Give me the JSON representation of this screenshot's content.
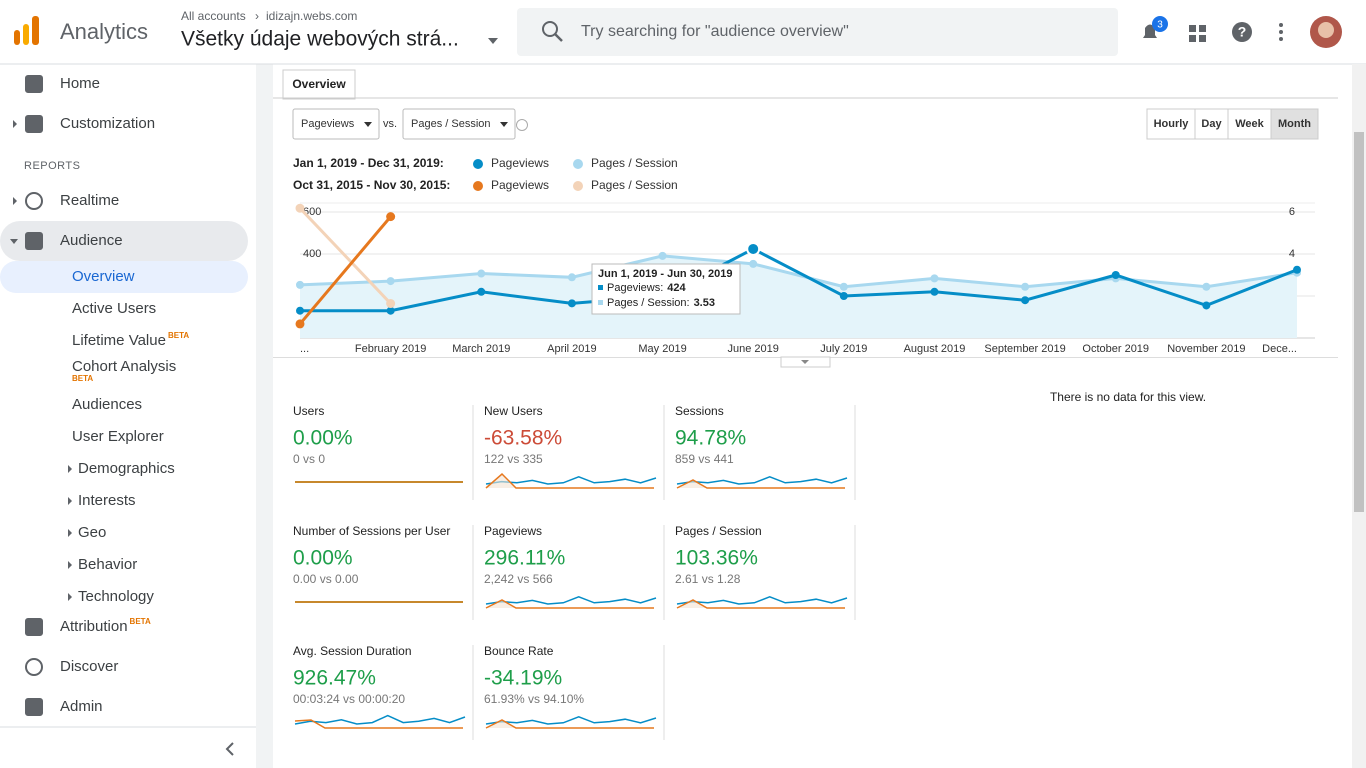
{
  "header": {
    "product": "Analytics",
    "breadcrumb": "All accounts",
    "breadcrumb_site": "idizajn.webs.com",
    "property": "Všetky údaje webových strá...",
    "search_placeholder": "Try searching for \"audience overview\"",
    "notifications": 3
  },
  "sidebar": {
    "section": "REPORTS",
    "items": [
      {
        "label": "Home"
      },
      {
        "label": "Customization"
      },
      {
        "label": "Realtime"
      },
      {
        "label": "Audience"
      },
      {
        "label": "Overview"
      },
      {
        "label": "Active Users"
      },
      {
        "label": "Lifetime Value",
        "badge": "BETA"
      },
      {
        "label": "Cohort Analysis",
        "badge": "BETA"
      },
      {
        "label": "Audiences"
      },
      {
        "label": "User Explorer"
      },
      {
        "label": "Demographics"
      },
      {
        "label": "Interests"
      },
      {
        "label": "Geo"
      },
      {
        "label": "Behavior"
      },
      {
        "label": "Technology"
      },
      {
        "label": "Attribution",
        "badge": "BETA"
      },
      {
        "label": "Discover"
      },
      {
        "label": "Admin"
      }
    ]
  },
  "toolbar": {
    "tab": "Overview",
    "metric1": "Pageviews",
    "vs": "vs.",
    "metric2": "Pages / Session",
    "buttons": [
      "Hourly",
      "Day",
      "Week",
      "Month"
    ]
  },
  "chart": {
    "type": "line",
    "ranges": [
      "Jan 1, 2019 - Dec 31, 2019:",
      "Oct 31, 2015 - Nov 30, 2015:"
    ],
    "categories": [
      "...",
      "February 2019",
      "March 2019",
      "April 2019",
      "May 2019",
      "June 2019",
      "July 2019",
      "August 2019",
      "September 2019",
      "October 2019",
      "November 2019",
      "Dece..."
    ],
    "ylim": [
      0,
      600
    ],
    "yticks": [
      200,
      400,
      600
    ],
    "y2lim": [
      0,
      6
    ],
    "y2ticks": [
      2,
      4,
      6
    ],
    "grid": true,
    "series": [
      {
        "name": "Pageviews",
        "color": "#058dc7",
        "values": [
          130,
          130,
          220,
          165,
          200,
          424,
          200,
          220,
          180,
          300,
          155,
          325
        ]
      },
      {
        "name": "Pages / Session",
        "color": "#a8d8ef",
        "axis": "y2",
        "values": [
          2.53,
          2.71,
          3.07,
          2.89,
          3.91,
          3.53,
          2.44,
          2.84,
          2.44,
          2.84,
          2.44,
          3.11
        ]
      },
      {
        "name": "Pageviews",
        "color": "#e6781e",
        "values": [
          67,
          578,
          null,
          null,
          null,
          null,
          null,
          null,
          null,
          null,
          null,
          null
        ]
      },
      {
        "name": "Pages / Session",
        "color": "#f3d3b8",
        "axis": "y2",
        "values": [
          6.18,
          1.64,
          null,
          null,
          null,
          null,
          null,
          null,
          null,
          null,
          null,
          null
        ]
      }
    ]
  },
  "tooltip": {
    "title": "Jun 1, 2019 - Jun 30, 2019",
    "rows": [
      {
        "label": "Pageviews:",
        "value": 424
      },
      {
        "label": "Pages / Session:",
        "value": 3.53
      }
    ]
  },
  "metrics": [
    {
      "name": "Users",
      "change": "0.00%",
      "compare": "0 vs 0",
      "color": "#1e9e4a"
    },
    {
      "name": "New Users",
      "change": "-63.58%",
      "compare": "122 vs 335",
      "color": "#cc4b37"
    },
    {
      "name": "Sessions",
      "change": "94.78%",
      "compare": "859 vs 441",
      "color": "#1e9e4a"
    },
    {
      "name": "Number of Sessions per User",
      "change": "0.00%",
      "compare": "0.00 vs 0.00",
      "color": "#1e9e4a"
    },
    {
      "name": "Pageviews",
      "change": "296.11%",
      "compare": "2,242 vs 566",
      "color": "#1e9e4a"
    },
    {
      "name": "Pages / Session",
      "change": "103.36%",
      "compare": "2.61 vs 1.28",
      "color": "#1e9e4a"
    },
    {
      "name": "Avg. Session Duration",
      "change": "926.47%",
      "compare": "00:03:24 vs 00:00:20",
      "color": "#1e9e4a"
    },
    {
      "name": "Bounce Rate",
      "change": "-34.19%",
      "compare": "61.93% vs 94.10%",
      "color": "#1e9e4a"
    }
  ],
  "empty_message": "There is no data for this view."
}
